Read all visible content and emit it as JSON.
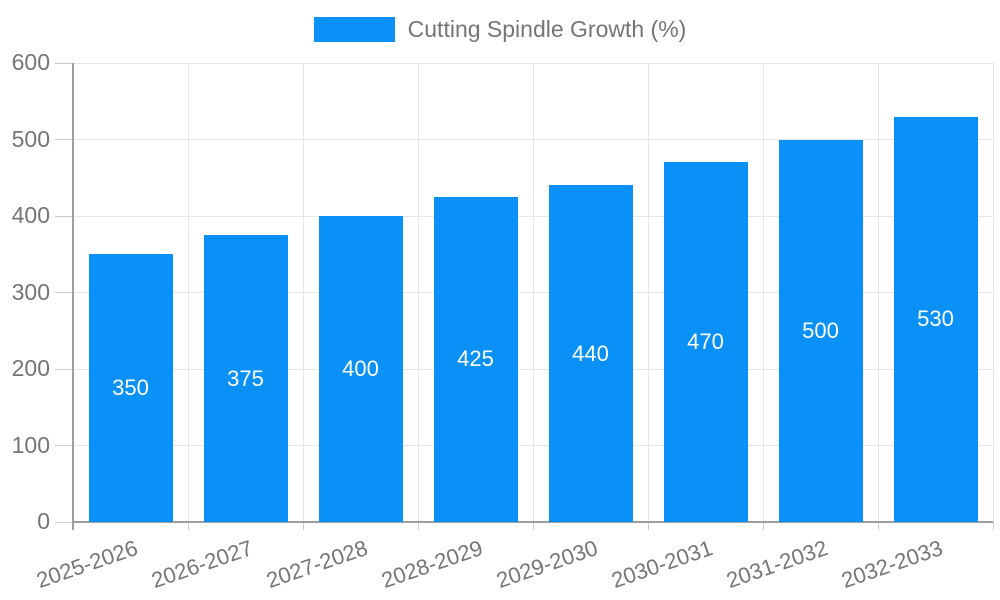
{
  "legend": {
    "label": "Cutting Spindle Growth (%)"
  },
  "chart_data": {
    "type": "bar",
    "title": "Cutting Spindle Growth (%)",
    "series_name": "Cutting Spindle Growth (%)",
    "categories": [
      "2025-2026",
      "2026-2027",
      "2027-2028",
      "2028-2029",
      "2029-2030",
      "2030-2031",
      "2031-2032",
      "2032-2033"
    ],
    "values": [
      350,
      375,
      400,
      425,
      440,
      470,
      500,
      530
    ],
    "xlabel": "",
    "ylabel": "",
    "ylim": [
      0,
      600
    ],
    "yticks": [
      0,
      100,
      200,
      300,
      400,
      500,
      600
    ],
    "grid": true,
    "legend_position": "top-center",
    "value_labels": "white, centered inside bars",
    "bar_color": "#0a91f8",
    "value_label_color": "#ffffff",
    "axis_label_color": "#757575",
    "gridline_color": "#e6e6e6",
    "axis_line_color": "#9e9e9e"
  }
}
